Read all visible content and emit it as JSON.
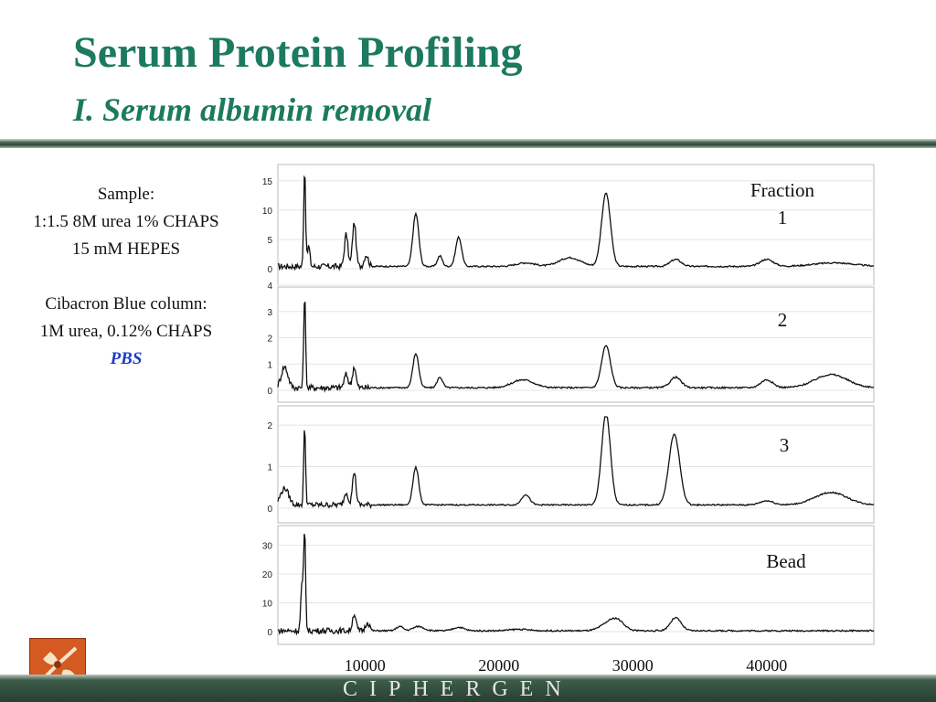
{
  "title": "Serum Protein Profiling",
  "subtitle": "I. Serum albumin removal",
  "notes": {
    "sample_heading": "Sample:",
    "sample_line1": "1:1.5 8M urea 1% CHAPS",
    "sample_line2": "15 mM HEPES",
    "column_heading": "Cibacron Blue column:",
    "column_line1": "1M urea, 0.12% CHAPS",
    "column_line2": "PBS"
  },
  "footer": {
    "brand": "CIPHERGEN"
  },
  "logo": {
    "icon": "ciphergen-logo-icon",
    "color": "#d45a21"
  },
  "colors": {
    "title": "#1c7a5e",
    "pbs": "#1a3cc8",
    "trace": "#111111"
  },
  "chart_data": {
    "type": "line",
    "xlabel": "",
    "xlim": [
      3500,
      48000
    ],
    "x_ticks": [
      "10000",
      "20000",
      "30000",
      "40000"
    ],
    "x_tick_values": [
      10000,
      20000,
      30000,
      40000
    ],
    "panels": [
      {
        "label_line1": "Fraction",
        "label_line2": "1",
        "ylim": [
          0,
          17
        ],
        "y_ticks": [
          "0",
          "5",
          "10",
          "15"
        ],
        "y_tick_values": [
          0,
          5,
          10,
          15
        ],
        "baseline": 0.4,
        "peaks": [
          [
            5500,
            17,
            70
          ],
          [
            5800,
            3.5,
            90
          ],
          [
            8600,
            5.5,
            130
          ],
          [
            9200,
            7.5,
            130
          ],
          [
            10100,
            2,
            150
          ],
          [
            13800,
            9,
            220
          ],
          [
            15600,
            1.8,
            180
          ],
          [
            17000,
            5,
            220
          ],
          [
            22000,
            0.6,
            700
          ],
          [
            25300,
            1.5,
            800
          ],
          [
            28000,
            12.5,
            330
          ],
          [
            33200,
            1.2,
            400
          ],
          [
            40000,
            1.2,
            500
          ],
          [
            45000,
            0.6,
            1500
          ]
        ]
      },
      {
        "label_line1": "2",
        "label_line2": "",
        "ylim": [
          0,
          4
        ],
        "y_ticks": [
          "0",
          "1",
          "2",
          "3",
          "4"
        ],
        "y_tick_values": [
          0,
          1,
          2,
          3,
          4
        ],
        "baseline": 0.1,
        "peaks": [
          [
            4000,
            0.8,
            250
          ],
          [
            5500,
            3.6,
            70
          ],
          [
            8600,
            0.5,
            150
          ],
          [
            9200,
            0.8,
            130
          ],
          [
            13800,
            1.3,
            220
          ],
          [
            15600,
            0.4,
            200
          ],
          [
            21800,
            0.3,
            800
          ],
          [
            28000,
            1.6,
            330
          ],
          [
            33200,
            0.4,
            400
          ],
          [
            40000,
            0.3,
            450
          ],
          [
            44800,
            0.5,
            1200
          ]
        ]
      },
      {
        "label_line1": "3",
        "label_line2": "",
        "ylim": [
          0,
          2.2
        ],
        "y_ticks": [
          "0",
          "1",
          "2"
        ],
        "y_tick_values": [
          0,
          1,
          2
        ],
        "baseline": 0.08,
        "peaks": [
          [
            4000,
            0.4,
            300
          ],
          [
            5500,
            1.9,
            70
          ],
          [
            8600,
            0.3,
            150
          ],
          [
            9200,
            0.8,
            130
          ],
          [
            13800,
            0.9,
            220
          ],
          [
            22000,
            0.25,
            300
          ],
          [
            28000,
            2.2,
            330
          ],
          [
            33100,
            1.7,
            400
          ],
          [
            40000,
            0.1,
            500
          ],
          [
            44800,
            0.3,
            1200
          ]
        ]
      },
      {
        "label_line1": "Bead",
        "label_line2": "",
        "ylim": [
          0,
          34
        ],
        "y_ticks": [
          "0",
          "10",
          "20",
          "30"
        ],
        "y_tick_values": [
          0,
          10,
          20,
          30
        ],
        "baseline": 0.3,
        "peaks": [
          [
            5500,
            35,
            70
          ],
          [
            5300,
            16,
            90
          ],
          [
            9200,
            6,
            130
          ],
          [
            10200,
            3,
            150
          ],
          [
            12600,
            1.5,
            250
          ],
          [
            14000,
            1.5,
            400
          ],
          [
            17000,
            1.2,
            400
          ],
          [
            21500,
            0.5,
            700
          ],
          [
            28200,
            2.5,
            600
          ],
          [
            28900,
            2.8,
            500
          ],
          [
            33200,
            4.5,
            400
          ]
        ]
      }
    ]
  }
}
